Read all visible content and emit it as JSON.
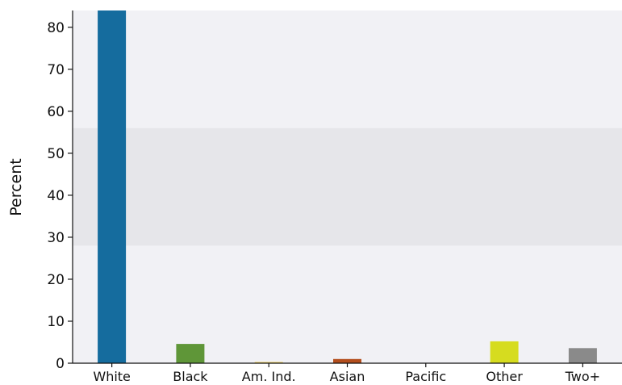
{
  "chart_data": {
    "type": "bar",
    "title": "",
    "xlabel": "",
    "ylabel": "Percent",
    "ylim": [
      0,
      84
    ],
    "yticks": [
      0,
      10,
      20,
      30,
      40,
      50,
      60,
      70,
      80
    ],
    "grid": false,
    "categories": [
      "White",
      "Black",
      "Am. Ind.",
      "Asian",
      "Pacific",
      "Other",
      "Two+"
    ],
    "values": [
      84,
      4.6,
      0.3,
      1.0,
      0.1,
      5.2,
      3.6
    ],
    "colors": [
      "#156c9e",
      "#5f9638",
      "#efd66b",
      "#b34e1d",
      "#7a4a8e",
      "#d6dc1f",
      "#8a8a8a"
    ],
    "background": {
      "plot_color": "#f1f1f5",
      "band_color": "#e6e6ea",
      "band_range": [
        28,
        56
      ]
    }
  }
}
